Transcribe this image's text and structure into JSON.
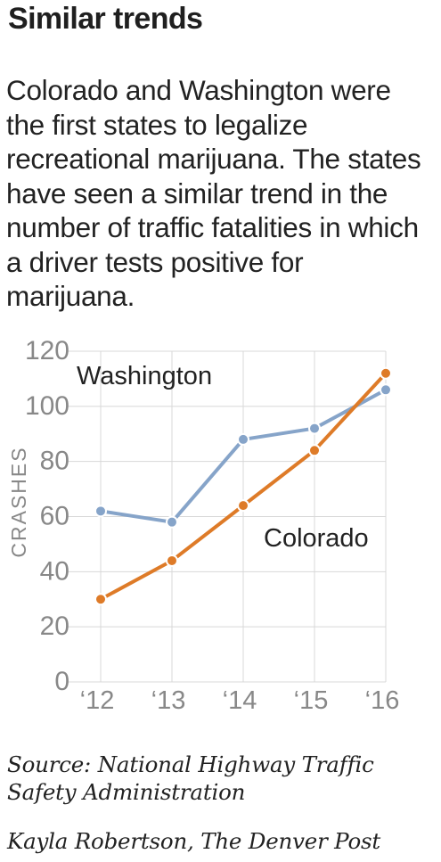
{
  "title": "Similar trends",
  "description": "Colorado and Washington were the first states to legalize recreational marijuana. The states have seen a similar trend in the number of traffic fatalities in which a driver tests positive for marijuana.",
  "colors": {
    "washington": "#86a4c9",
    "colorado": "#de7b28",
    "grid": "#d8d8d8",
    "axis_text": "#888888"
  },
  "chart_data": {
    "type": "line",
    "title": "",
    "xlabel": "",
    "ylabel": "CRASHES",
    "x": [
      "‘12",
      "‘13",
      "‘14",
      "‘15",
      "‘16"
    ],
    "ylim": [
      0,
      120
    ],
    "yticks": [
      0,
      20,
      40,
      60,
      80,
      100,
      120
    ],
    "grid": true,
    "series": [
      {
        "name": "Washington",
        "values": [
          62,
          58,
          88,
          92,
          106
        ]
      },
      {
        "name": "Colorado",
        "values": [
          30,
          44,
          64,
          84,
          112
        ]
      }
    ]
  },
  "footer": {
    "source": "Source:  National Highway Traffic Safety Administration",
    "credit": "Kayla Robertson, The Denver Post"
  }
}
